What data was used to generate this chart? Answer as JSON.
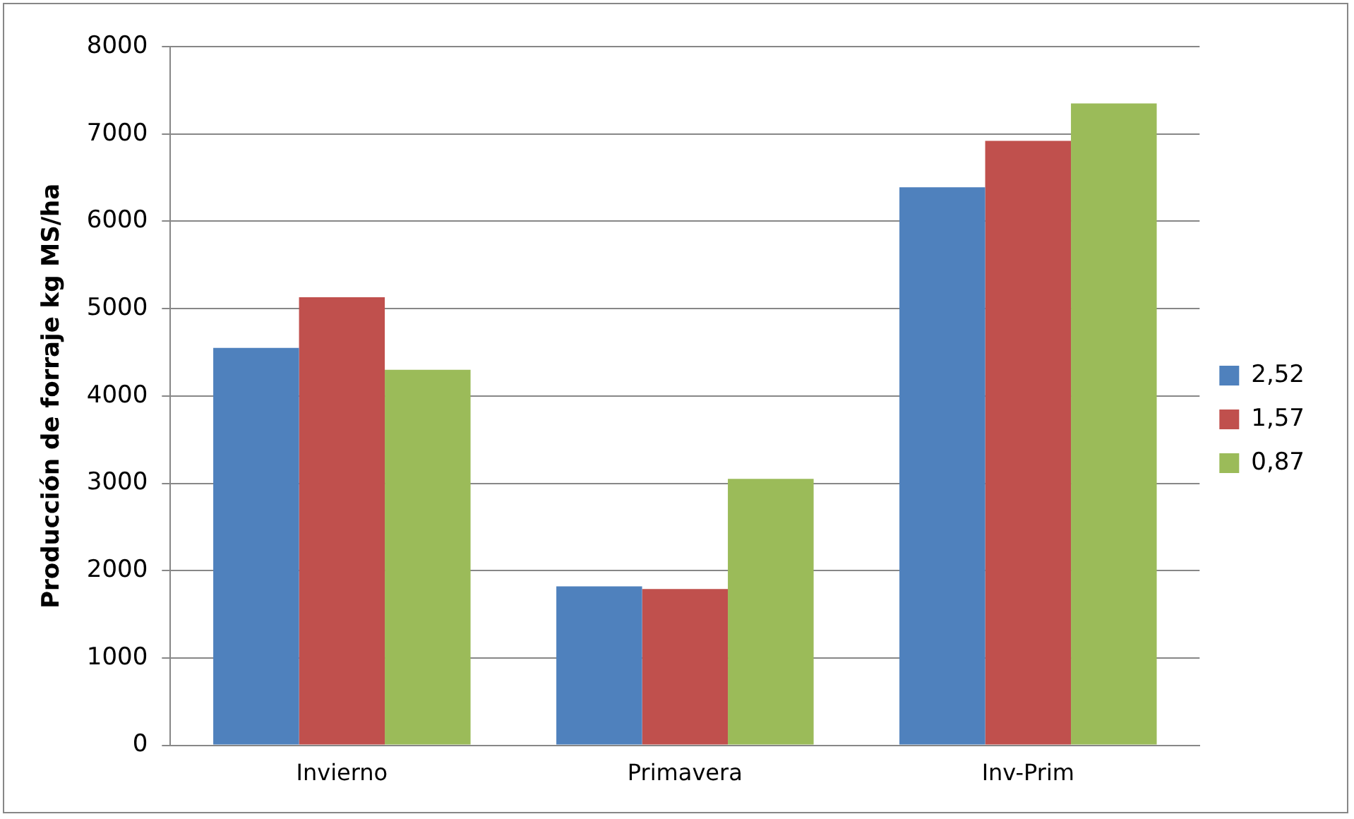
{
  "chart_data": {
    "type": "bar",
    "ylabel": "Producción de forraje kg MS/ha",
    "categories": [
      "Invierno",
      "Primavera",
      "Inv-Prim"
    ],
    "series": [
      {
        "name": "2,52",
        "color": "#4f81bd",
        "values": [
          4550,
          1820,
          6390
        ]
      },
      {
        "name": "1,57",
        "color": "#c0504d",
        "values": [
          5130,
          1790,
          6920
        ]
      },
      {
        "name": "0,87",
        "color": "#9bbb59",
        "values": [
          4300,
          3050,
          7350
        ]
      }
    ],
    "ylim": [
      0,
      8000
    ],
    "yticks": [
      0,
      1000,
      2000,
      3000,
      4000,
      5000,
      6000,
      7000,
      8000
    ],
    "grid": "y",
    "legend": "right"
  }
}
